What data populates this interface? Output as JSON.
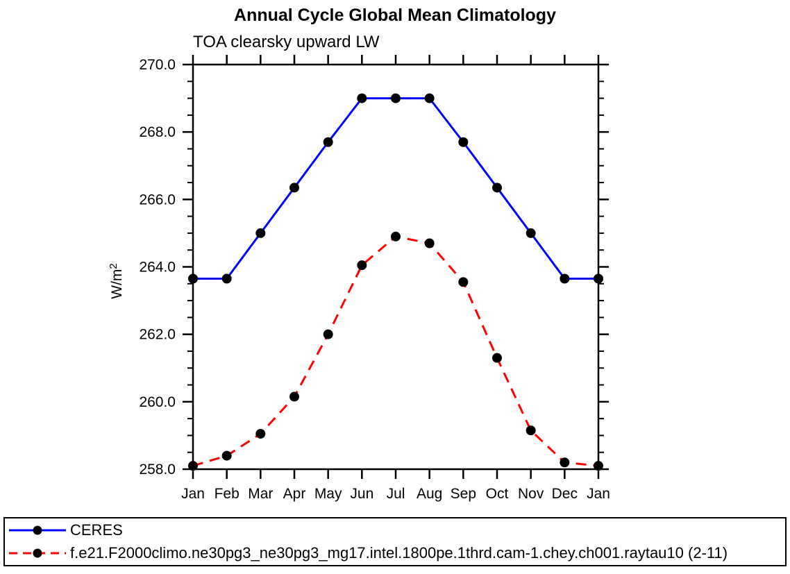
{
  "page": {
    "background": "#ffffff",
    "axis_color": "#000000",
    "marker_color": "#000000"
  },
  "chart_data": {
    "type": "line",
    "title": "Annual Cycle Global Mean Climatology",
    "subtitle": "TOA clearsky upward LW",
    "ylabel_main": "W/m",
    "ylabel_sup": "2",
    "x_categories": [
      "Jan",
      "Feb",
      "Mar",
      "Apr",
      "May",
      "Jun",
      "Jul",
      "Aug",
      "Sep",
      "Oct",
      "Nov",
      "Dec",
      "Jan"
    ],
    "ylim": [
      258.0,
      270.0
    ],
    "y_ticks": [
      258,
      260,
      262,
      264,
      266,
      268,
      270
    ],
    "y_tick_labels": [
      "258.0",
      "260.0",
      "262.0",
      "264.0",
      "266.0",
      "268.0",
      "270.0"
    ],
    "y_minor_step": 0.5,
    "grid": false,
    "legend_position": "bottom-box",
    "series": [
      {
        "name": "CERES",
        "color": "#0000ff",
        "line_style": "solid",
        "marker": "circle",
        "marker_color": "#000000",
        "values": [
          263.65,
          263.65,
          265.0,
          266.35,
          267.7,
          269.0,
          269.0,
          269.0,
          267.7,
          266.35,
          265.0,
          263.65,
          263.65
        ]
      },
      {
        "name": "f.e21.F2000climo.ne30pg3_ne30pg3_mg17.intel.1800pe.1thrd.cam-1.chey.ch001.raytau10 (2-11)",
        "color": "#ff0000",
        "line_style": "dashed",
        "marker": "circle",
        "marker_color": "#000000",
        "values": [
          258.1,
          258.4,
          259.05,
          260.15,
          262.0,
          264.05,
          264.9,
          264.7,
          263.55,
          261.3,
          259.15,
          258.2,
          258.1
        ]
      }
    ]
  }
}
